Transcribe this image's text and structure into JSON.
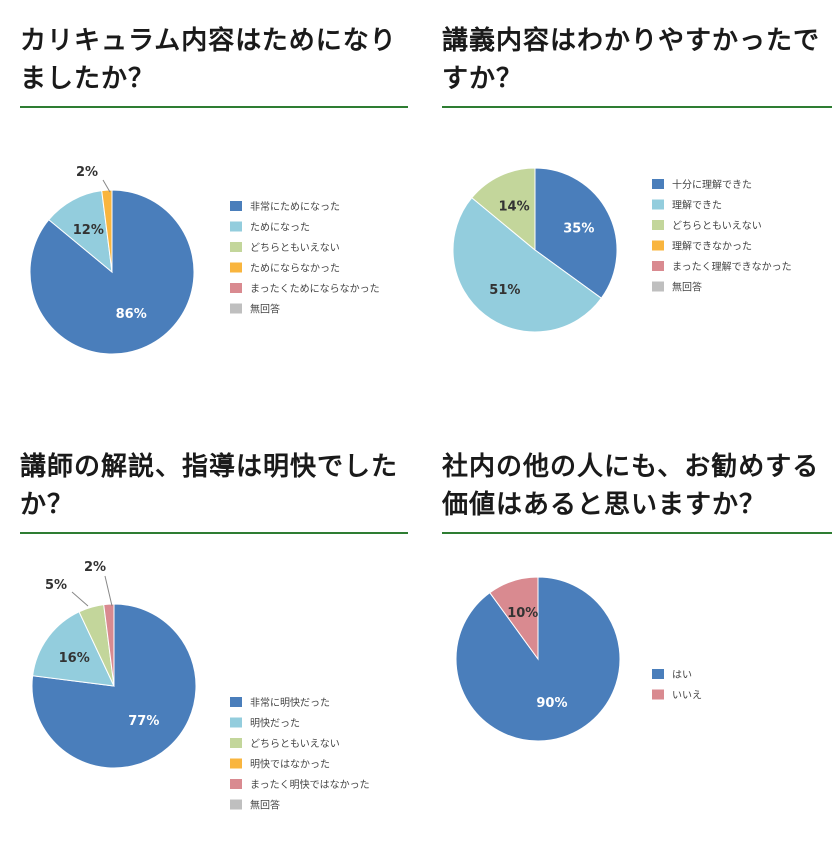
{
  "charts": [
    {
      "title": "カリキュラム内容はためになりましたか？",
      "chart_data": {
        "type": "pie",
        "title": "カリキュラム内容はためになりましたか？",
        "legend": "right",
        "categories": [
          "非常にためになった",
          "ためになった",
          "どちらともいえない",
          "ためにならなかった",
          "まったくためにならなかった",
          "無回答"
        ],
        "values": [
          86,
          12,
          0,
          2,
          0,
          0
        ],
        "colors": [
          "#4a7ebb",
          "#93cddd",
          "#c3d69b",
          "#f9b53e",
          "#d98a90",
          "#bfbfbf"
        ],
        "labels": [
          "86%",
          "12%",
          "",
          "2%",
          "",
          ""
        ]
      }
    },
    {
      "title": "講義内容はわかりやすかったですか？",
      "chart_data": {
        "type": "pie",
        "title": "講義内容はわかりやすかったですか？",
        "legend": "right",
        "categories": [
          "十分に理解できた",
          "理解できた",
          "どちらともいえない",
          "理解できなかった",
          "まったく理解できなかった",
          "無回答"
        ],
        "values": [
          35,
          51,
          14,
          0,
          0,
          0
        ],
        "colors": [
          "#4a7ebb",
          "#93cddd",
          "#c3d69b",
          "#f9b53e",
          "#d98a90",
          "#bfbfbf"
        ],
        "labels": [
          "35%",
          "51%",
          "14%",
          "",
          "",
          ""
        ]
      }
    },
    {
      "title": "講師の解説、指導は明快でしたか？",
      "chart_data": {
        "type": "pie",
        "title": "講師の解説、指導は明快でしたか？",
        "legend": "right",
        "categories": [
          "非常に明快だった",
          "明快だった",
          "どちらともいえない",
          "明快ではなかった",
          "まったく明快ではなかった",
          "無回答"
        ],
        "values": [
          77,
          16,
          5,
          0,
          2,
          0
        ],
        "colors": [
          "#4a7ebb",
          "#93cddd",
          "#c3d69b",
          "#f9b53e",
          "#d98a90",
          "#bfbfbf"
        ],
        "labels": [
          "77%",
          "16%",
          "5%",
          "",
          "2%",
          ""
        ]
      }
    },
    {
      "title": "社内の他の人にも、お勧めする価値はあると思いますか？",
      "chart_data": {
        "type": "pie",
        "title": "社内の他の人にも、お勧めする価値はあると思いますか？",
        "legend": "right",
        "categories": [
          "はい",
          "いいえ"
        ],
        "values": [
          90,
          10
        ],
        "colors": [
          "#4a7ebb",
          "#d98a90"
        ],
        "labels": [
          "90%",
          "10%"
        ]
      }
    }
  ]
}
